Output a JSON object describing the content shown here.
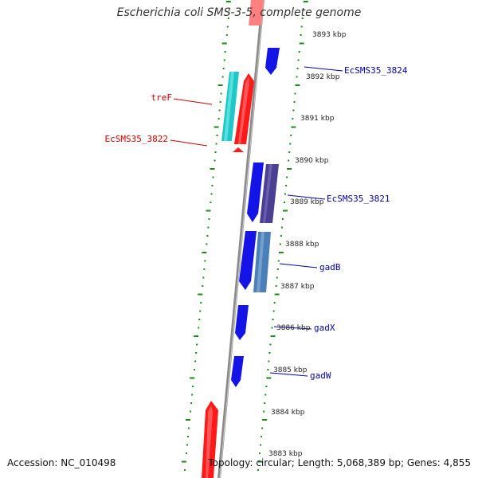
{
  "title": "Escherichia coli SMS-3-5, complete genome",
  "accession_text": "Accession: NC_010498",
  "summary_text": "Topology: circular; Length: 5,068,389 bp; Genes: 4,855",
  "colors": {
    "backbone": "#8a8a8a",
    "tick_green": "#1a8a1a",
    "label_red": "#cc0000",
    "label_blue": "#0000aa"
  },
  "kbp_labels": [
    "3893 kbp",
    "3892 kbp",
    "3891 kbp",
    "3890 kbp",
    "3889 kbp",
    "3888 kbp",
    "3887 kbp",
    "3886 kbp",
    "3885 kbp",
    "3884 kbp",
    "3883 kbp"
  ],
  "genes": [
    {
      "label": "",
      "strand": "reverse",
      "color": "#ff3b3b",
      "shape": "bar"
    },
    {
      "label": "",
      "strand": "forward",
      "color": "#1414e6",
      "shape": "arrow-down"
    },
    {
      "label": "EcSMS35_3824",
      "strand": "forward",
      "color": "#0000aa",
      "shape": "label"
    },
    {
      "label": "treF",
      "strand": "reverse",
      "color": "#1ec8c8",
      "shape": "bar"
    },
    {
      "label": "",
      "strand": "reverse",
      "color": "#ff1a1a",
      "shape": "arrow-up"
    },
    {
      "label": "EcSMS35_3822",
      "strand": "reverse",
      "color": "#ff1a1a",
      "shape": "small-arrow-up"
    },
    {
      "label": "",
      "strand": "forward",
      "color": "#1414e6",
      "shape": "arrow-down"
    },
    {
      "label": "EcSMS35_3821",
      "strand": "forward",
      "color": "#4b3f94",
      "shape": "bar"
    },
    {
      "label": "",
      "strand": "forward",
      "color": "#1414e6",
      "shape": "arrow-down"
    },
    {
      "label": "gadB",
      "strand": "forward",
      "color": "#4a7fb8",
      "shape": "bar"
    },
    {
      "label": "gadX",
      "strand": "forward",
      "color": "#1414e6",
      "shape": "arrow-down"
    },
    {
      "label": "gadW",
      "strand": "forward",
      "color": "#1414e6",
      "shape": "arrow-down"
    },
    {
      "label": "",
      "strand": "reverse",
      "color": "#ff1a1a",
      "shape": "arrow-up"
    }
  ]
}
